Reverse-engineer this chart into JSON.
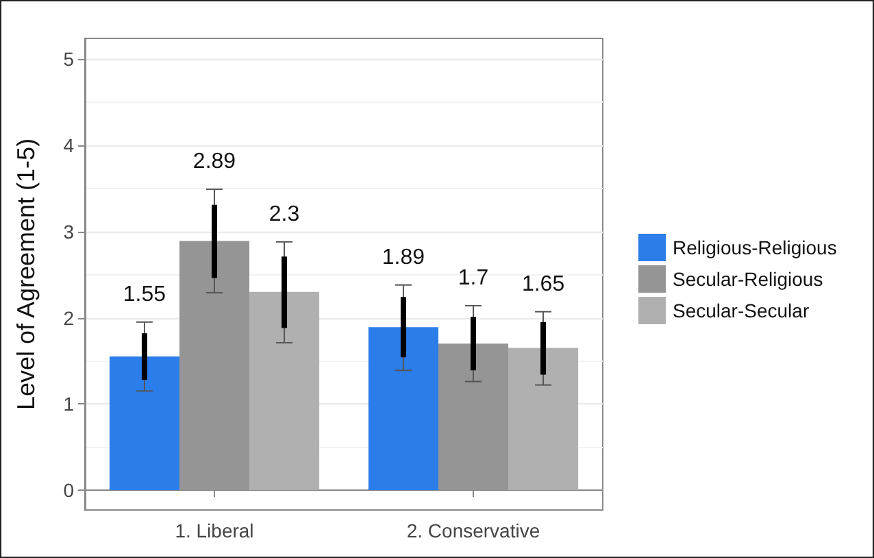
{
  "chart_data": {
    "type": "bar",
    "categories": [
      "1. Liberal",
      "2. Conservative"
    ],
    "ylabel": "Level of Agreement (1-5)",
    "ylim": [
      -0.23,
      5.24
    ],
    "yticks": [
      0,
      1,
      2,
      3,
      4,
      5
    ],
    "grid": "y",
    "legend": "right",
    "series": [
      {
        "name": "Religious-Religious",
        "color": "#2b7de9",
        "values": [
          1.55,
          1.89
        ],
        "value_labels": [
          "1.55",
          "1.89"
        ],
        "errors": [
          [
            1.15,
            1.95
          ],
          [
            1.39,
            2.38
          ]
        ]
      },
      {
        "name": "Secular-Religious",
        "color": "#959595",
        "values": [
          2.89,
          1.7
        ],
        "value_labels": [
          "2.89",
          "1.7"
        ],
        "errors": [
          [
            2.29,
            3.49
          ],
          [
            1.26,
            2.14
          ]
        ]
      },
      {
        "name": "Secular-Secular",
        "color": "#b0b0b0",
        "values": [
          2.3,
          1.65
        ],
        "value_labels": [
          "2.3",
          "1.65"
        ],
        "errors": [
          [
            1.71,
            2.88
          ],
          [
            1.22,
            2.07
          ]
        ]
      },
      {
        "color": "#000000",
        "base": [
          1.28,
          1.54
        ],
        "values": [
          0.54,
          0.7
        ]
      },
      {
        "color": "#000000",
        "base": [
          2.46,
          1.39
        ],
        "values": [
          0.85,
          0.62
        ]
      },
      {
        "color": "#000000",
        "base": [
          1.88,
          1.34
        ],
        "values": [
          0.83,
          0.61
        ]
      }
    ]
  }
}
